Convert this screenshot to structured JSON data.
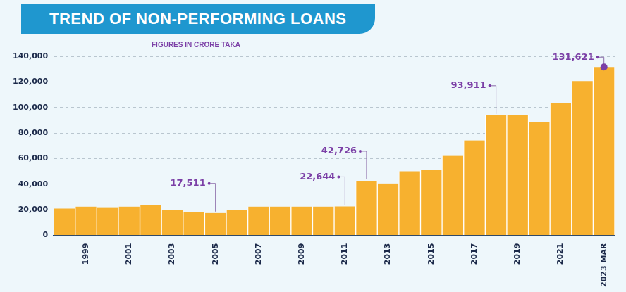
{
  "chart_data": {
    "type": "bar",
    "title": "TREND OF NON-PERFORMING LOANS",
    "subtitle": "FIGURES IN CRORE TAKA",
    "categories": [
      null,
      "1999",
      null,
      "2001",
      null,
      "2003",
      null,
      "2005",
      null,
      "2007",
      null,
      "2009",
      null,
      "2011",
      null,
      "2013",
      null,
      "2015",
      null,
      "2017",
      null,
      "2019",
      null,
      "2021",
      null,
      "2023 MAR"
    ],
    "values": [
      21000,
      22500,
      22000,
      22500,
      23500,
      20000,
      18500,
      17511,
      20000,
      22500,
      22500,
      22500,
      22500,
      22644,
      42726,
      40583,
      50155,
      51371,
      62172,
      74303,
      93911,
      94331,
      88734,
      103274,
      120656,
      131621
    ],
    "value_labels": [
      null,
      null,
      null,
      null,
      null,
      null,
      null,
      "17,511",
      null,
      null,
      null,
      null,
      null,
      "22,644",
      "42,726",
      null,
      null,
      null,
      null,
      null,
      "93,911",
      null,
      null,
      null,
      null,
      "131,621"
    ],
    "data_labels": true,
    "color": "#f7b12f",
    "ylim": [
      0,
      140000
    ],
    "yticks": [
      0,
      {
        "value": 20000,
        "label": "20,000"
      },
      {
        "value": 40000,
        "label": "40,000"
      },
      {
        "value": 60000,
        "label": "60,000"
      },
      {
        "value": 80000,
        "label": "80,000"
      },
      {
        "value": 100000,
        "label": "100,000"
      },
      {
        "value": 120000,
        "label": "120,000"
      },
      {
        "value": 140000,
        "label": "140,000"
      }
    ],
    "grid": true
  }
}
